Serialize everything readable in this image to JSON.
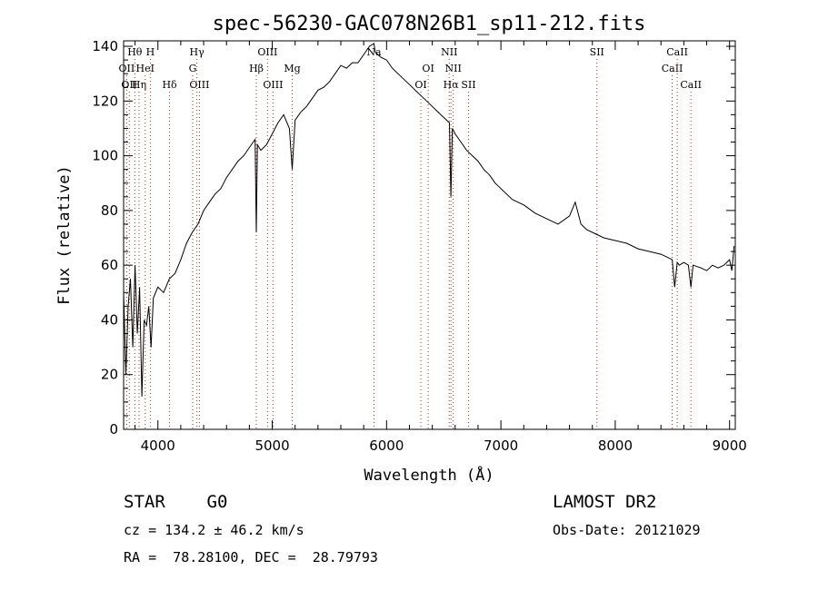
{
  "chart_data": {
    "type": "line",
    "title": "spec-56230-GAC078N26B1_sp11-212.fits",
    "xlabel": "Wavelength (Å)",
    "ylabel": "Flux (relative)",
    "xlim": [
      3700,
      9050
    ],
    "ylim": [
      0,
      142
    ],
    "xticks": [
      4000,
      5000,
      6000,
      7000,
      8000,
      9000
    ],
    "yticks": [
      0,
      20,
      40,
      60,
      80,
      100,
      120,
      140
    ],
    "grid": false,
    "line_color": "#000000",
    "marker_color": "#b03030",
    "spectrum": {
      "x": [
        3700,
        3720,
        3740,
        3760,
        3780,
        3800,
        3820,
        3840,
        3860,
        3880,
        3900,
        3920,
        3940,
        3960,
        3980,
        4000,
        4050,
        4100,
        4150,
        4200,
        4250,
        4300,
        4350,
        4400,
        4450,
        4500,
        4550,
        4600,
        4650,
        4700,
        4750,
        4800,
        4850,
        4861,
        4870,
        4900,
        4950,
        5000,
        5050,
        5100,
        5150,
        5175,
        5200,
        5250,
        5300,
        5350,
        5400,
        5450,
        5500,
        5550,
        5600,
        5650,
        5700,
        5750,
        5800,
        5850,
        5890,
        5900,
        5950,
        6000,
        6050,
        6100,
        6150,
        6200,
        6250,
        6300,
        6350,
        6400,
        6450,
        6500,
        6550,
        6563,
        6575,
        6600,
        6650,
        6700,
        6750,
        6800,
        6850,
        6900,
        6950,
        7000,
        7100,
        7200,
        7300,
        7400,
        7500,
        7600,
        7650,
        7700,
        7750,
        7800,
        7900,
        8000,
        8100,
        8200,
        8300,
        8400,
        8450,
        8498,
        8520,
        8542,
        8560,
        8600,
        8640,
        8662,
        8680,
        8750,
        8800,
        8850,
        8900,
        8950,
        9000,
        9020,
        9040
      ],
      "y": [
        50,
        20,
        45,
        55,
        30,
        60,
        35,
        52,
        12,
        40,
        38,
        45,
        30,
        48,
        50,
        52,
        50,
        55,
        57,
        62,
        68,
        72,
        75,
        80,
        83,
        86,
        88,
        92,
        95,
        98,
        100,
        103,
        106,
        72,
        104,
        102,
        104,
        108,
        112,
        115,
        110,
        95,
        113,
        116,
        118,
        121,
        124,
        125,
        127,
        130,
        133,
        132,
        134,
        134,
        137,
        140,
        141,
        138,
        136,
        135,
        132,
        130,
        128,
        126,
        124,
        122,
        120,
        118,
        116,
        114,
        112,
        85,
        110,
        108,
        105,
        102,
        100,
        98,
        95,
        93,
        90,
        88,
        84,
        82,
        79,
        77,
        75,
        78,
        83,
        75,
        73,
        72,
        70,
        69,
        68,
        66,
        65,
        64,
        63,
        62,
        52,
        61,
        60,
        61,
        60,
        52,
        60,
        59,
        58,
        60,
        59,
        60,
        62,
        58,
        67
      ]
    },
    "markers": [
      {
        "wl": 3727,
        "label": "OII",
        "row": 2
      },
      {
        "wl": 3750,
        "label": "OII",
        "row": 3
      },
      {
        "wl": 3798,
        "label": "Hθ",
        "row": 1
      },
      {
        "wl": 3835,
        "label": "Hη",
        "row": 3
      },
      {
        "wl": 3889,
        "label": "HeI",
        "row": 2
      },
      {
        "wl": 3934,
        "label": "H",
        "row": 1
      },
      {
        "wl": 4102,
        "label": "Hδ",
        "row": 3
      },
      {
        "wl": 4304,
        "label": "G",
        "row": 2
      },
      {
        "wl": 4341,
        "label": "Hγ",
        "row": 1
      },
      {
        "wl": 4363,
        "label": "OIII",
        "row": 3
      },
      {
        "wl": 4861,
        "label": "Hβ",
        "row": 2
      },
      {
        "wl": 4959,
        "label": "OIII",
        "row": 1
      },
      {
        "wl": 5007,
        "label": "OIII",
        "row": 3
      },
      {
        "wl": 5175,
        "label": "Mg",
        "row": 2
      },
      {
        "wl": 5890,
        "label": "Na",
        "row": 1
      },
      {
        "wl": 6300,
        "label": "OI",
        "row": 3
      },
      {
        "wl": 6364,
        "label": "OI",
        "row": 2
      },
      {
        "wl": 6548,
        "label": "NII",
        "row": 1
      },
      {
        "wl": 6563,
        "label": "Hα",
        "row": 3
      },
      {
        "wl": 6583,
        "label": "NII",
        "row": 2
      },
      {
        "wl": 6717,
        "label": "SII",
        "row": 3
      },
      {
        "wl": 7840,
        "label": "SII",
        "row": 1
      },
      {
        "wl": 8498,
        "label": "CaII",
        "row": 2
      },
      {
        "wl": 8542,
        "label": "CaII",
        "row": 1
      },
      {
        "wl": 8662,
        "label": "CaII",
        "row": 3
      }
    ]
  },
  "info": {
    "object_class": "STAR    G0",
    "survey": "LAMOST DR2",
    "redshift": "cz = 134.2 ± 46.2 km/s",
    "obs_date": "Obs-Date: 20121029",
    "coords": "RA =  78.28100, DEC =  28.79793"
  }
}
